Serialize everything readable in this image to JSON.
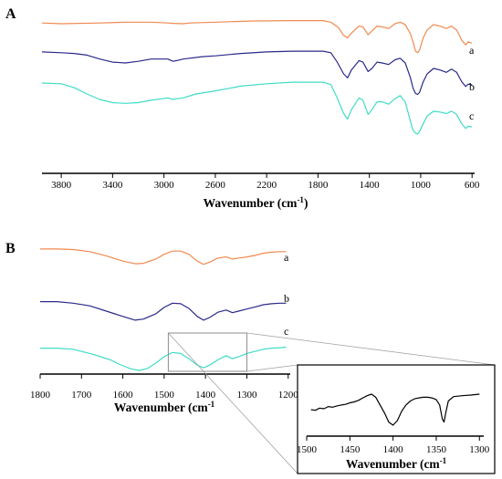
{
  "chart_data": [
    {
      "panel": "A",
      "type": "line",
      "xlabel": "Wavenumber (cm",
      "xlabel_sup": "-1",
      "xlabel_tail": ")",
      "xlim": [
        3950,
        580
      ],
      "x_reversed": true,
      "xticks": [
        3800,
        3400,
        3000,
        2600,
        2200,
        1800,
        1400,
        1000,
        600
      ],
      "series": [
        {
          "name": "a",
          "color": "#f08a50",
          "points": [
            [
              3950,
              0.06
            ],
            [
              3800,
              0.07
            ],
            [
              3500,
              0.06
            ],
            [
              3300,
              0.05
            ],
            [
              3100,
              0.05
            ],
            [
              2970,
              0.06
            ],
            [
              2930,
              0.065
            ],
            [
              2850,
              0.07
            ],
            [
              2800,
              0.06
            ],
            [
              2600,
              0.05
            ],
            [
              2300,
              0.035
            ],
            [
              2000,
              0.03
            ],
            [
              1760,
              0.03
            ],
            [
              1700,
              0.05
            ],
            [
              1640,
              0.12
            ],
            [
              1600,
              0.22
            ],
            [
              1570,
              0.25
            ],
            [
              1540,
              0.19
            ],
            [
              1480,
              0.1
            ],
            [
              1450,
              0.11
            ],
            [
              1410,
              0.21
            ],
            [
              1380,
              0.16
            ],
            [
              1340,
              0.1
            ],
            [
              1300,
              0.11
            ],
            [
              1250,
              0.13
            ],
            [
              1200,
              0.07
            ],
            [
              1160,
              0.05
            ],
            [
              1120,
              0.08
            ],
            [
              1080,
              0.2
            ],
            [
              1060,
              0.3
            ],
            [
              1040,
              0.42
            ],
            [
              1025,
              0.44
            ],
            [
              1010,
              0.41
            ],
            [
              980,
              0.25
            ],
            [
              950,
              0.15
            ],
            [
              900,
              0.08
            ],
            [
              850,
              0.1
            ],
            [
              800,
              0.13
            ],
            [
              760,
              0.1
            ],
            [
              720,
              0.15
            ],
            [
              680,
              0.28
            ],
            [
              650,
              0.34
            ],
            [
              630,
              0.3
            ],
            [
              600,
              0.32
            ]
          ]
        },
        {
          "name": "b",
          "color": "#2a2a8a",
          "points": [
            [
              3950,
              0.22
            ],
            [
              3800,
              0.23
            ],
            [
              3700,
              0.24
            ],
            [
              3600,
              0.26
            ],
            [
              3500,
              0.31
            ],
            [
              3400,
              0.35
            ],
            [
              3300,
              0.36
            ],
            [
              3200,
              0.34
            ],
            [
              3100,
              0.31
            ],
            [
              2970,
              0.31
            ],
            [
              2930,
              0.34
            ],
            [
              2900,
              0.33
            ],
            [
              2850,
              0.31
            ],
            [
              2700,
              0.28
            ],
            [
              2600,
              0.27
            ],
            [
              2400,
              0.24
            ],
            [
              2200,
              0.22
            ],
            [
              2000,
              0.21
            ],
            [
              1760,
              0.21
            ],
            [
              1700,
              0.23
            ],
            [
              1650,
              0.35
            ],
            [
              1600,
              0.5
            ],
            [
              1570,
              0.55
            ],
            [
              1540,
              0.45
            ],
            [
              1480,
              0.33
            ],
            [
              1450,
              0.35
            ],
            [
              1410,
              0.47
            ],
            [
              1380,
              0.43
            ],
            [
              1340,
              0.35
            ],
            [
              1300,
              0.36
            ],
            [
              1250,
              0.38
            ],
            [
              1200,
              0.32
            ],
            [
              1160,
              0.3
            ],
            [
              1120,
              0.36
            ],
            [
              1080,
              0.55
            ],
            [
              1060,
              0.68
            ],
            [
              1040,
              0.75
            ],
            [
              1025,
              0.76
            ],
            [
              1010,
              0.74
            ],
            [
              980,
              0.6
            ],
            [
              950,
              0.5
            ],
            [
              900,
              0.43
            ],
            [
              850,
              0.45
            ],
            [
              800,
              0.48
            ],
            [
              760,
              0.44
            ],
            [
              720,
              0.48
            ],
            [
              680,
              0.6
            ],
            [
              650,
              0.66
            ],
            [
              630,
              0.63
            ],
            [
              600,
              0.64
            ]
          ]
        },
        {
          "name": "c",
          "color": "#40dcc6",
          "points": [
            [
              3950,
              0.36
            ],
            [
              3800,
              0.37
            ],
            [
              3700,
              0.42
            ],
            [
              3600,
              0.5
            ],
            [
              3500,
              0.57
            ],
            [
              3400,
              0.61
            ],
            [
              3300,
              0.62
            ],
            [
              3200,
              0.61
            ],
            [
              3100,
              0.58
            ],
            [
              2970,
              0.55
            ],
            [
              2930,
              0.57
            ],
            [
              2900,
              0.56
            ],
            [
              2850,
              0.55
            ],
            [
              2750,
              0.5
            ],
            [
              2600,
              0.46
            ],
            [
              2400,
              0.4
            ],
            [
              2200,
              0.37
            ],
            [
              2000,
              0.35
            ],
            [
              1760,
              0.35
            ],
            [
              1700,
              0.38
            ],
            [
              1650,
              0.55
            ],
            [
              1600,
              0.75
            ],
            [
              1570,
              0.82
            ],
            [
              1540,
              0.7
            ],
            [
              1480,
              0.55
            ],
            [
              1450,
              0.58
            ],
            [
              1410,
              0.76
            ],
            [
              1380,
              0.7
            ],
            [
              1340,
              0.6
            ],
            [
              1300,
              0.6
            ],
            [
              1250,
              0.63
            ],
            [
              1200,
              0.56
            ],
            [
              1160,
              0.52
            ],
            [
              1120,
              0.6
            ],
            [
              1080,
              0.85
            ],
            [
              1060,
              0.96
            ],
            [
              1040,
              1.0
            ],
            [
              1025,
              1.01
            ],
            [
              1010,
              0.98
            ],
            [
              980,
              0.88
            ],
            [
              950,
              0.78
            ],
            [
              900,
              0.72
            ],
            [
              850,
              0.73
            ],
            [
              800,
              0.75
            ],
            [
              760,
              0.72
            ],
            [
              720,
              0.76
            ],
            [
              680,
              0.88
            ],
            [
              650,
              0.94
            ],
            [
              630,
              0.91
            ],
            [
              600,
              0.92
            ]
          ]
        }
      ]
    },
    {
      "panel": "B",
      "type": "line",
      "xlabel": "Wavenumber (cm",
      "xlabel_sup": "-1",
      "xlabel_tail": "",
      "xlim": [
        1800,
        1195
      ],
      "x_reversed": true,
      "xticks": [
        1800,
        1700,
        1600,
        1500,
        1400,
        1300,
        1200
      ],
      "series": [
        {
          "name": "a",
          "color": "#f08a50",
          "points": [
            [
              1800,
              0.05
            ],
            [
              1760,
              0.05
            ],
            [
              1720,
              0.06
            ],
            [
              1680,
              0.1
            ],
            [
              1640,
              0.18
            ],
            [
              1600,
              0.28
            ],
            [
              1570,
              0.33
            ],
            [
              1550,
              0.32
            ],
            [
              1520,
              0.24
            ],
            [
              1500,
              0.15
            ],
            [
              1480,
              0.09
            ],
            [
              1460,
              0.09
            ],
            [
              1440,
              0.15
            ],
            [
              1420,
              0.28
            ],
            [
              1405,
              0.34
            ],
            [
              1390,
              0.3
            ],
            [
              1370,
              0.22
            ],
            [
              1350,
              0.2
            ],
            [
              1335,
              0.24
            ],
            [
              1320,
              0.22
            ],
            [
              1300,
              0.2
            ],
            [
              1280,
              0.17
            ],
            [
              1260,
              0.13
            ],
            [
              1240,
              0.11
            ],
            [
              1220,
              0.1
            ],
            [
              1205,
              0.1
            ]
          ]
        },
        {
          "name": "b",
          "color": "#2a2a8a",
          "points": [
            [
              1800,
              0.32
            ],
            [
              1760,
              0.32
            ],
            [
              1720,
              0.35
            ],
            [
              1680,
              0.4
            ],
            [
              1640,
              0.5
            ],
            [
              1600,
              0.6
            ],
            [
              1570,
              0.67
            ],
            [
              1550,
              0.65
            ],
            [
              1520,
              0.55
            ],
            [
              1500,
              0.43
            ],
            [
              1480,
              0.35
            ],
            [
              1460,
              0.36
            ],
            [
              1440,
              0.45
            ],
            [
              1420,
              0.6
            ],
            [
              1405,
              0.67
            ],
            [
              1390,
              0.62
            ],
            [
              1370,
              0.52
            ],
            [
              1350,
              0.48
            ],
            [
              1335,
              0.53
            ],
            [
              1320,
              0.5
            ],
            [
              1300,
              0.46
            ],
            [
              1280,
              0.42
            ],
            [
              1260,
              0.38
            ],
            [
              1240,
              0.36
            ],
            [
              1220,
              0.35
            ],
            [
              1205,
              0.35
            ]
          ]
        },
        {
          "name": "c",
          "color": "#40dcc6",
          "points": [
            [
              1800,
              0.58
            ],
            [
              1760,
              0.58
            ],
            [
              1720,
              0.6
            ],
            [
              1690,
              0.66
            ],
            [
              1670,
              0.7
            ],
            [
              1650,
              0.75
            ],
            [
              1630,
              0.8
            ],
            [
              1610,
              0.88
            ],
            [
              1580,
              0.97
            ],
            [
              1560,
              1.0
            ],
            [
              1540,
              0.96
            ],
            [
              1520,
              0.86
            ],
            [
              1500,
              0.74
            ],
            [
              1480,
              0.66
            ],
            [
              1460,
              0.68
            ],
            [
              1440,
              0.78
            ],
            [
              1420,
              0.9
            ],
            [
              1405,
              0.95
            ],
            [
              1390,
              0.9
            ],
            [
              1370,
              0.8
            ],
            [
              1350,
              0.72
            ],
            [
              1335,
              0.78
            ],
            [
              1320,
              0.74
            ],
            [
              1300,
              0.68
            ],
            [
              1280,
              0.64
            ],
            [
              1260,
              0.6
            ],
            [
              1240,
              0.58
            ],
            [
              1220,
              0.57
            ],
            [
              1205,
              0.56
            ]
          ]
        }
      ],
      "zoom_region": [
        1490,
        1300
      ]
    },
    {
      "panel": "inset",
      "type": "line",
      "xlabel": "Wavenumber (cm",
      "xlabel_sup": "-1",
      "xlabel_tail": "",
      "xlim": [
        1500,
        1295
      ],
      "x_reversed": true,
      "xticks": [
        1500,
        1450,
        1400,
        1350,
        1300
      ],
      "series": [
        {
          "color": "#000000",
          "points": [
            [
              1495,
              0.5
            ],
            [
              1490,
              0.52
            ],
            [
              1485,
              0.45
            ],
            [
              1480,
              0.47
            ],
            [
              1475,
              0.4
            ],
            [
              1470,
              0.42
            ],
            [
              1465,
              0.38
            ],
            [
              1460,
              0.35
            ],
            [
              1455,
              0.33
            ],
            [
              1450,
              0.28
            ],
            [
              1445,
              0.25
            ],
            [
              1440,
              0.2
            ],
            [
              1435,
              0.12
            ],
            [
              1430,
              0.05
            ],
            [
              1425,
              0.0
            ],
            [
              1420,
              0.1
            ],
            [
              1415,
              0.35
            ],
            [
              1410,
              0.6
            ],
            [
              1405,
              0.9
            ],
            [
              1400,
              1.0
            ],
            [
              1395,
              0.85
            ],
            [
              1390,
              0.55
            ],
            [
              1385,
              0.35
            ],
            [
              1380,
              0.22
            ],
            [
              1375,
              0.15
            ],
            [
              1370,
              0.12
            ],
            [
              1365,
              0.1
            ],
            [
              1360,
              0.1
            ],
            [
              1355,
              0.12
            ],
            [
              1350,
              0.18
            ],
            [
              1346,
              0.35
            ],
            [
              1343,
              0.8
            ],
            [
              1341,
              0.9
            ],
            [
              1339,
              0.6
            ],
            [
              1336,
              0.22
            ],
            [
              1330,
              0.08
            ],
            [
              1320,
              0.05
            ],
            [
              1310,
              0.03
            ],
            [
              1300,
              0.0
            ]
          ]
        }
      ]
    }
  ],
  "panel_labels": {
    "a": "A",
    "b": "B"
  },
  "series_labels": {
    "a": "a",
    "b": "b",
    "c": "c"
  }
}
